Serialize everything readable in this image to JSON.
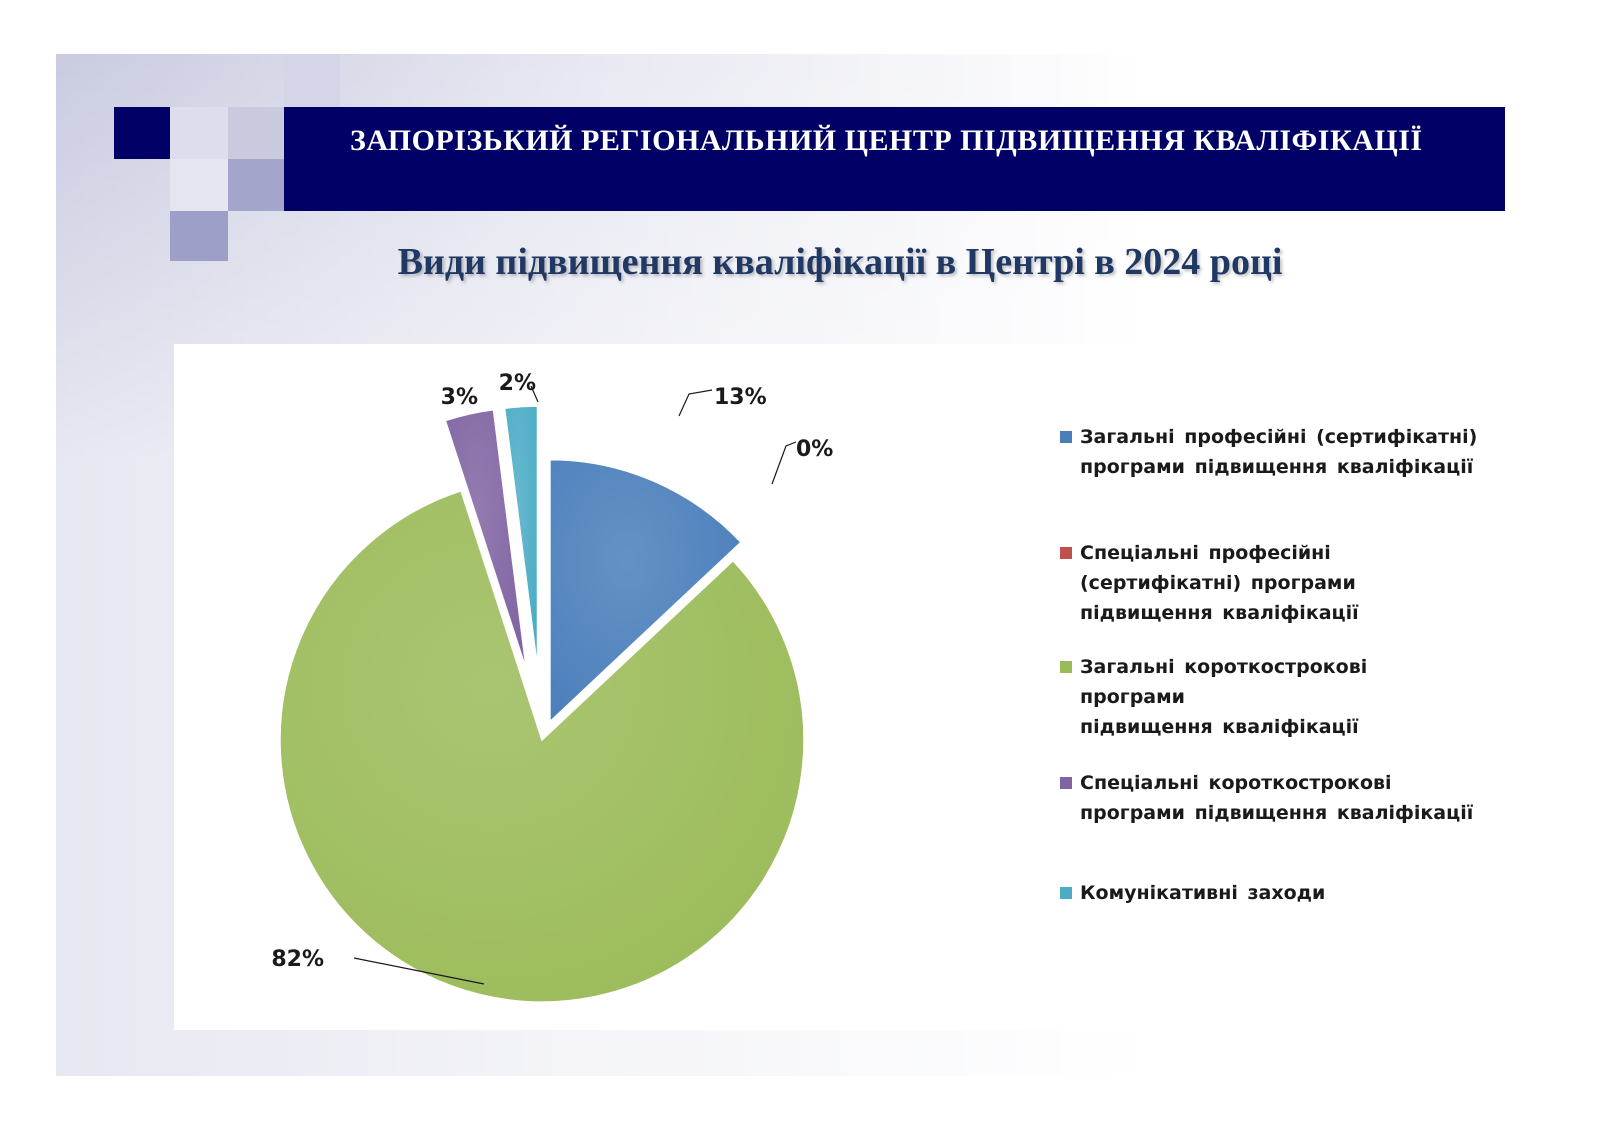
{
  "header": {
    "title": "ЗАПОРІЗЬКИЙ РЕГІОНАЛЬНИЙ ЦЕНТР ПІДВИЩЕННЯ КВАЛІФІКАЦІЇ"
  },
  "slide": {
    "title": "Види підвищення кваліфікації в Центрі в 2024 році"
  },
  "colors": {
    "header_bg": "#000066",
    "title": "#1f3864"
  },
  "chart_data": {
    "type": "pie",
    "exploded": true,
    "style": "3d-shaded",
    "legend_position": "right",
    "categories": [
      "Загальні професійні (сертифікатні) програми підвищення кваліфікації",
      "Спеціальні професійні (сертифікатні) програми підвищення кваліфікації",
      "Загальні короткострокові програми підвищення кваліфікації",
      "Спеціальні короткострокові програми підвищення кваліфікації",
      "Комунікативні заходи"
    ],
    "legend_labels": [
      "Загальні професійні (сертифікатні)\nпрограми підвищення кваліфікації",
      "Спеціальні професійні\n(сертифікатні) програми\nпідвищення кваліфікації",
      "Загальні короткострокові програми\nпідвищення кваліфікації",
      "Спеціальні короткострокові\nпрограми підвищення кваліфікації",
      "Комунікативні заходи"
    ],
    "values": [
      13,
      0,
      82,
      3,
      2
    ],
    "data_labels": [
      "13%",
      "0%",
      "82%",
      "3%",
      "2%"
    ],
    "colors": [
      "#4a7ebb",
      "#c0504d",
      "#9bbb59",
      "#8064a2",
      "#4bacc6"
    ]
  }
}
